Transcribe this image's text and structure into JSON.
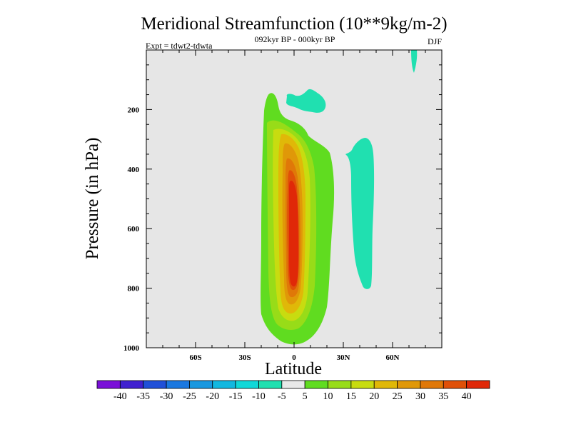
{
  "chart_data": {
    "type": "heatmap",
    "title": "Meridional Streamfunction (10**9kg/m-2)",
    "subtitle_center": "092kyr BP - 000kyr BP",
    "subtitle_left": "Expt = tdwt2-tdwta",
    "subtitle_right": "DJF",
    "xlabel": "Latitude",
    "ylabel": "Pressure (in hPa)",
    "xlim": [
      -90,
      90
    ],
    "ylim": [
      1000,
      0
    ],
    "x_ticks": [
      {
        "value": -60,
        "label": "60S"
      },
      {
        "value": -30,
        "label": "30S"
      },
      {
        "value": 0,
        "label": "0"
      },
      {
        "value": 30,
        "label": "30N"
      },
      {
        "value": 60,
        "label": "60N"
      }
    ],
    "y_ticks": [
      {
        "value": 200,
        "label": "200"
      },
      {
        "value": 400,
        "label": "400"
      },
      {
        "value": 600,
        "label": "600"
      },
      {
        "value": 800,
        "label": "800"
      },
      {
        "value": 1000,
        "label": "1000"
      }
    ],
    "colorbar": {
      "levels": [
        -40,
        -35,
        -30,
        -25,
        -20,
        -15,
        -10,
        -5,
        5,
        10,
        15,
        20,
        25,
        30,
        35,
        40
      ],
      "labels": [
        "-40",
        "-35",
        "-30",
        "-25",
        "-20",
        "-15",
        "-10",
        "-5",
        "5",
        "10",
        "15",
        "20",
        "25",
        "30",
        "35",
        "40"
      ],
      "colors": [
        "#7a10d8",
        "#4020d0",
        "#2050d8",
        "#1a78e0",
        "#1898e0",
        "#12b8e0",
        "#10d8d8",
        "#20e0b0",
        "#e8e8e8",
        "#60dc20",
        "#98dc18",
        "#c8dc10",
        "#e0b808",
        "#e09808",
        "#e07808",
        "#e05008",
        "#e02808"
      ]
    },
    "background_color": "#e6e6e6",
    "features": [
      {
        "name": "positive-cell",
        "lat_range": [
          -13,
          17
        ],
        "p_range": [
          60,
          980
        ],
        "max_value": 40
      },
      {
        "name": "negative-cell-upper",
        "lat_range": [
          -3,
          10
        ],
        "p_range": [
          120,
          180
        ],
        "min_value": -10
      },
      {
        "name": "negative-cell-midlat",
        "lat_range": [
          32,
          47
        ],
        "p_range": [
          300,
          800
        ],
        "min_value": -10
      },
      {
        "name": "negative-cell-polar",
        "lat_range": [
          72,
          74
        ],
        "p_range": [
          0,
          40
        ],
        "min_value": -10
      }
    ]
  }
}
